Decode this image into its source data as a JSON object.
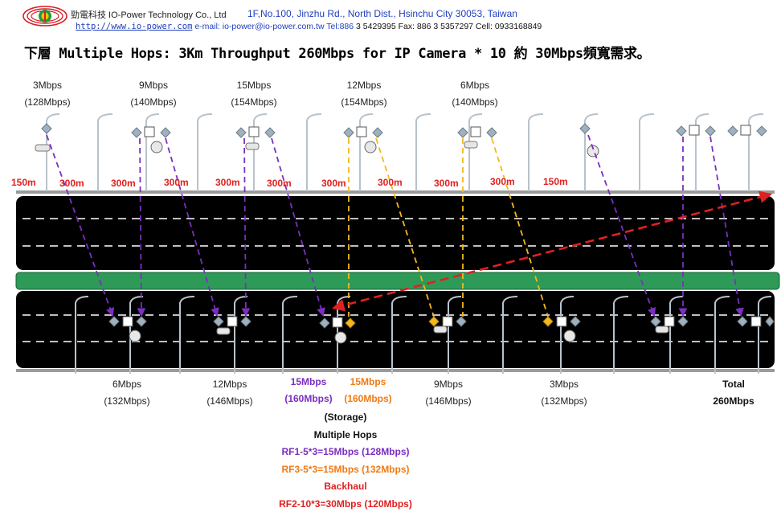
{
  "header": {
    "company": "勁電科技 IO-Power Technology Co., Ltd",
    "address": "1F,No.100, Jinzhu Rd., North Dist., Hsinchu City 30053, Taiwan",
    "website": "http://www.io-power.com",
    "contact": " e-mail: io-power@io-power.com.tw Tel:886 ",
    "phones": "3 5429395 Fax: 886 3 5357297 Cell: 0933168849"
  },
  "title": "下層 Multiple Hops: 3Km Throughput 260Mbps for IP Camera * 10 約 30Mbps頻寬需求。",
  "top_labels": [
    {
      "rate": "3Mbps",
      "total": "(128Mbps)"
    },
    {
      "rate": "9Mbps",
      "total": "(140Mbps)"
    },
    {
      "rate": "15Mbps",
      "total": "(154Mbps)"
    },
    {
      "rate": "12Mbps",
      "total": "(154Mbps)"
    },
    {
      "rate": "6Mbps",
      "total": "(140Mbps)"
    }
  ],
  "distances": [
    "150m",
    "300m",
    "300m",
    "300m",
    "300m",
    "300m",
    "300m",
    "300m",
    "300m",
    "300m",
    "150m"
  ],
  "bottom_labels": [
    {
      "rate": "6Mbps",
      "total": "(132Mbps)"
    },
    {
      "rate": "12Mbps",
      "total": "(146Mbps)"
    },
    {
      "rate": "9Mbps",
      "total": "(146Mbps)"
    },
    {
      "rate": "3Mbps",
      "total": "(132Mbps)"
    }
  ],
  "storage": {
    "purple_rate": "15Mbps",
    "purple_total": "(160Mbps)",
    "orange_rate": "15Mbps",
    "orange_total": "(160Mbps)",
    "label": "(Storage)"
  },
  "total": {
    "label": "Total",
    "value": "260Mbps"
  },
  "notes": {
    "heading": "Multiple Hops",
    "rf1": "RF1-5*3=15Mbps (128Mbps)",
    "rf3": "RF3-5*3=15Mbps (132Mbps)",
    "backhaul": "Backhaul",
    "rf2": "RF2-10*3=30Mbps (120Mbps)"
  },
  "colors": {
    "rf1": "#7a2fc0",
    "rf3": "#f5b81c",
    "backhaul": "#e02020",
    "median": "#2e9a58",
    "road": "#000000",
    "node": "#9fb0bf",
    "logo_red": "#d61f26",
    "logo_green": "#1f9a3c",
    "logo_yellow": "#f2c300"
  }
}
